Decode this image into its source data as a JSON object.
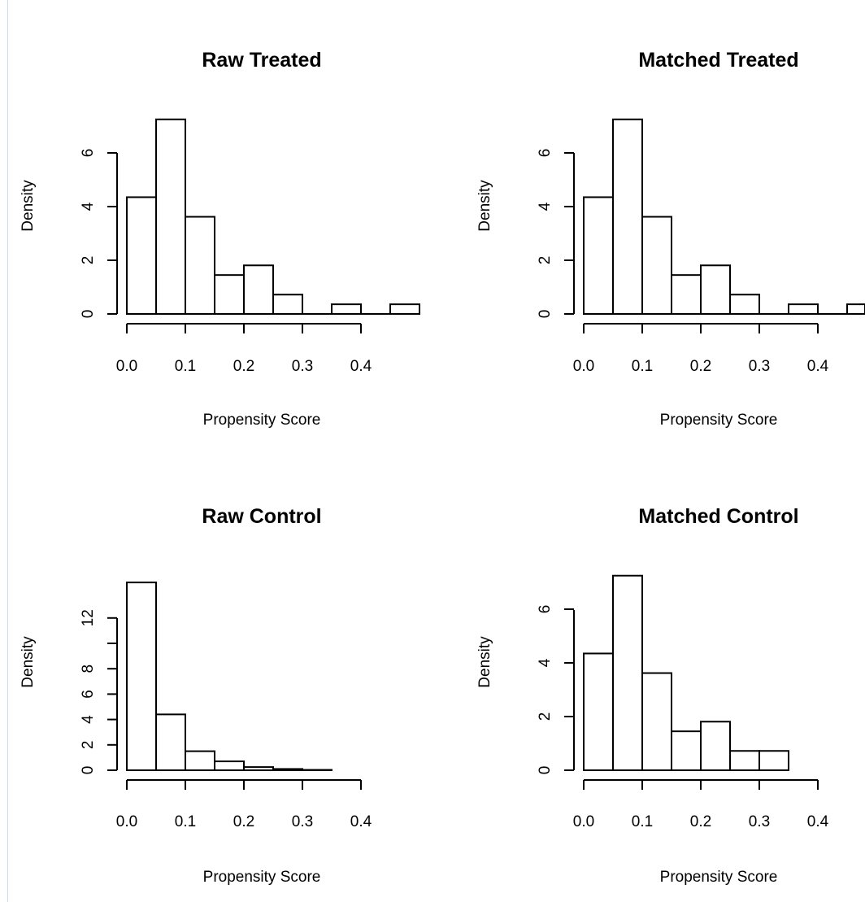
{
  "chart_data": [
    {
      "type": "bar",
      "title": "Raw Treated",
      "xlabel": "Propensity Score",
      "ylabel": "Density",
      "xlim": [
        0,
        0.5
      ],
      "ylim": [
        0,
        7.3
      ],
      "bin_edges": [
        0,
        0.05,
        0.1,
        0.15,
        0.2,
        0.25,
        0.3,
        0.35,
        0.4,
        0.45,
        0.5
      ],
      "values": [
        4.35,
        7.25,
        3.62,
        1.45,
        1.81,
        0.72,
        0,
        0.36,
        0,
        0.36
      ],
      "x_ticks": [
        "0.0",
        "0.1",
        "0.2",
        "0.3",
        "0.4"
      ],
      "y_ticks": [
        "0",
        "2",
        "4",
        "6"
      ]
    },
    {
      "type": "bar",
      "title": "Matched Treated",
      "xlabel": "Propensity Score",
      "ylabel": "Density",
      "xlim": [
        0,
        0.5
      ],
      "ylim": [
        0,
        7.3
      ],
      "bin_edges": [
        0,
        0.05,
        0.1,
        0.15,
        0.2,
        0.25,
        0.3,
        0.35,
        0.4,
        0.45,
        0.5
      ],
      "values": [
        4.35,
        7.25,
        3.62,
        1.45,
        1.81,
        0.72,
        0,
        0.36,
        0,
        0.36
      ],
      "x_ticks": [
        "0.0",
        "0.1",
        "0.2",
        "0.3",
        "0.4"
      ],
      "y_ticks": [
        "0",
        "2",
        "4",
        "6"
      ]
    },
    {
      "type": "bar",
      "title": "Raw Control",
      "xlabel": "Propensity Score",
      "ylabel": "Density",
      "xlim": [
        0,
        0.4
      ],
      "ylim": [
        0,
        14.8
      ],
      "bin_edges": [
        0,
        0.05,
        0.1,
        0.15,
        0.2,
        0.25,
        0.3,
        0.35
      ],
      "values": [
        14.8,
        4.4,
        1.5,
        0.7,
        0.25,
        0.1,
        0.03
      ],
      "x_ticks": [
        "0.0",
        "0.1",
        "0.2",
        "0.3",
        "0.4"
      ],
      "y_ticks": [
        "0",
        "2",
        "4",
        "6",
        "8",
        "12"
      ]
    },
    {
      "type": "bar",
      "title": "Matched Control",
      "xlabel": "Propensity Score",
      "ylabel": "Density",
      "xlim": [
        0,
        0.4
      ],
      "ylim": [
        0,
        7.3
      ],
      "bin_edges": [
        0,
        0.05,
        0.1,
        0.15,
        0.2,
        0.25,
        0.3,
        0.35
      ],
      "values": [
        4.35,
        7.25,
        3.62,
        1.45,
        1.81,
        0.72,
        0.72
      ],
      "x_ticks": [
        "0.0",
        "0.1",
        "0.2",
        "0.3",
        "0.4"
      ],
      "y_ticks": [
        "0",
        "2",
        "4",
        "6"
      ]
    }
  ]
}
